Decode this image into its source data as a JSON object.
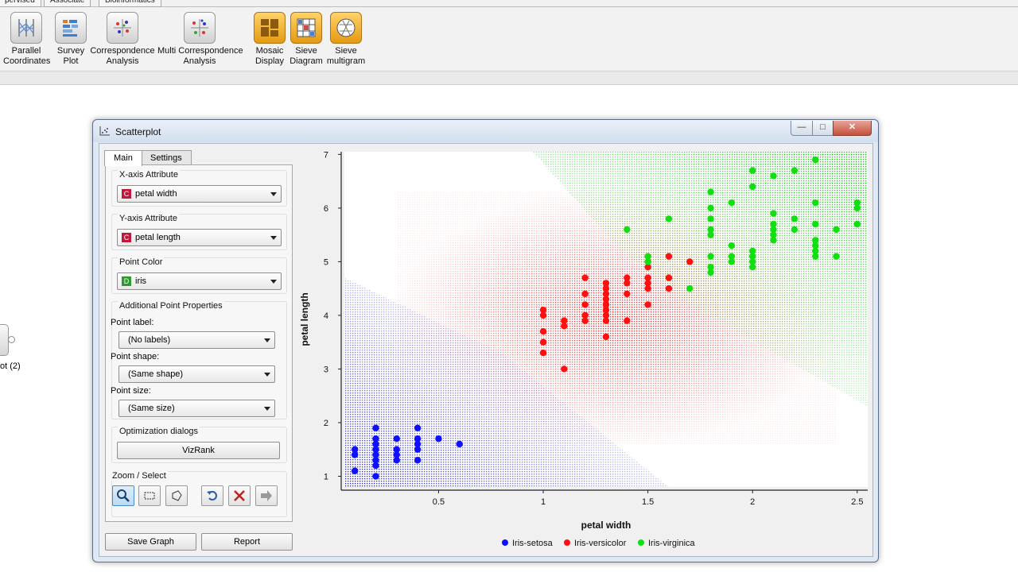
{
  "canvas_tabs": [
    "pervised",
    "Associate",
    "Bioinformatics"
  ],
  "toolbar": {
    "widgets": [
      {
        "label": "Parallel\nCoordinates",
        "icon": "parallel-coordinates-icon"
      },
      {
        "label": "Survey\nPlot",
        "icon": "survey-plot-icon"
      },
      {
        "label": "Correspondence\nAnalysis",
        "icon": "correspondence-analysis-icon"
      },
      {
        "label": "Multi Correspondence\nAnalysis",
        "icon": "multi-correspondence-analysis-icon"
      },
      {
        "label": "Mosaic\nDisplay",
        "icon": "mosaic-display-icon"
      },
      {
        "label": "Sieve\nDiagram",
        "icon": "sieve-diagram-icon"
      },
      {
        "label": "Sieve\nmultigram",
        "icon": "sieve-multigram-icon"
      }
    ]
  },
  "canvas_node": {
    "label": "ot (2)"
  },
  "window": {
    "title": "Scatterplot",
    "minimize": "—",
    "maximize": "□",
    "close": "✕"
  },
  "panel": {
    "tabs": [
      "Main",
      "Settings"
    ],
    "active_tab": "Main",
    "x_axis": {
      "title": "X-axis Attribute",
      "type": "C",
      "value": "petal width"
    },
    "y_axis": {
      "title": "Y-axis Attribute",
      "type": "C",
      "value": "petal length"
    },
    "point_color": {
      "title": "Point Color",
      "type": "D",
      "value": "iris"
    },
    "additional": {
      "title": "Additional Point Properties",
      "label_caption": "Point label:",
      "label_value": "(No labels)",
      "shape_caption": "Point shape:",
      "shape_value": "(Same shape)",
      "size_caption": "Point size:",
      "size_value": "(Same size)"
    },
    "optimization": {
      "title": "Optimization dialogs",
      "button": "VizRank"
    },
    "zoom": {
      "title": "Zoom / Select",
      "tools": [
        "zoom-icon",
        "rectangle-select-icon",
        "lasso-select-icon",
        "undo-icon",
        "remove-selection-icon",
        "send-selection-icon"
      ]
    },
    "save_graph": "Save Graph",
    "report": "Report"
  },
  "colors": {
    "setosa": "#1010ff",
    "versicolor": "#ff1010",
    "virginica": "#10e010",
    "window_frame": "#dfe8f3"
  },
  "chart_data": {
    "type": "scatter",
    "xlabel": "petal width",
    "ylabel": "petal length",
    "xlim": [
      0.05,
      2.55
    ],
    "ylim": [
      0.8,
      7.05
    ],
    "xticks": [
      "0.5",
      "1",
      "1.5",
      "2",
      "2.5"
    ],
    "yticks": [
      "1",
      "2",
      "3",
      "4",
      "5",
      "6",
      "7"
    ],
    "background": "classification probability map",
    "legend_position": "bottom",
    "series": [
      {
        "name": "Iris-setosa",
        "color": "#1010ff",
        "points": [
          [
            0.1,
            1.1
          ],
          [
            0.1,
            1.4
          ],
          [
            0.1,
            1.5
          ],
          [
            0.2,
            1.0
          ],
          [
            0.2,
            1.2
          ],
          [
            0.2,
            1.3
          ],
          [
            0.2,
            1.4
          ],
          [
            0.2,
            1.5
          ],
          [
            0.2,
            1.6
          ],
          [
            0.2,
            1.7
          ],
          [
            0.2,
            1.9
          ],
          [
            0.3,
            1.3
          ],
          [
            0.3,
            1.4
          ],
          [
            0.3,
            1.5
          ],
          [
            0.3,
            1.7
          ],
          [
            0.4,
            1.3
          ],
          [
            0.4,
            1.5
          ],
          [
            0.4,
            1.6
          ],
          [
            0.4,
            1.7
          ],
          [
            0.4,
            1.9
          ],
          [
            0.5,
            1.7
          ],
          [
            0.6,
            1.6
          ]
        ]
      },
      {
        "name": "Iris-versicolor",
        "color": "#ff1010",
        "points": [
          [
            1.0,
            3.3
          ],
          [
            1.0,
            3.5
          ],
          [
            1.0,
            3.7
          ],
          [
            1.0,
            4.0
          ],
          [
            1.0,
            4.1
          ],
          [
            1.1,
            3.0
          ],
          [
            1.1,
            3.8
          ],
          [
            1.1,
            3.9
          ],
          [
            1.2,
            3.9
          ],
          [
            1.2,
            4.0
          ],
          [
            1.2,
            4.2
          ],
          [
            1.2,
            4.4
          ],
          [
            1.2,
            4.7
          ],
          [
            1.3,
            3.6
          ],
          [
            1.3,
            3.9
          ],
          [
            1.3,
            4.0
          ],
          [
            1.3,
            4.1
          ],
          [
            1.3,
            4.2
          ],
          [
            1.3,
            4.3
          ],
          [
            1.3,
            4.4
          ],
          [
            1.3,
            4.5
          ],
          [
            1.3,
            4.6
          ],
          [
            1.4,
            3.9
          ],
          [
            1.4,
            4.4
          ],
          [
            1.4,
            4.6
          ],
          [
            1.4,
            4.7
          ],
          [
            1.5,
            4.2
          ],
          [
            1.5,
            4.5
          ],
          [
            1.5,
            4.6
          ],
          [
            1.5,
            4.7
          ],
          [
            1.5,
            4.9
          ],
          [
            1.6,
            4.5
          ],
          [
            1.6,
            4.7
          ],
          [
            1.6,
            5.1
          ],
          [
            1.7,
            5.0
          ]
        ]
      },
      {
        "name": "Iris-virginica",
        "color": "#10e010",
        "points": [
          [
            1.4,
            5.6
          ],
          [
            1.5,
            5.0
          ],
          [
            1.5,
            5.1
          ],
          [
            1.6,
            5.8
          ],
          [
            1.7,
            4.5
          ],
          [
            1.8,
            4.8
          ],
          [
            1.8,
            4.9
          ],
          [
            1.8,
            5.1
          ],
          [
            1.8,
            5.5
          ],
          [
            1.8,
            5.6
          ],
          [
            1.8,
            5.8
          ],
          [
            1.8,
            6.0
          ],
          [
            1.8,
            6.3
          ],
          [
            1.9,
            5.0
          ],
          [
            1.9,
            5.1
          ],
          [
            1.9,
            5.3
          ],
          [
            1.9,
            6.1
          ],
          [
            2.0,
            4.9
          ],
          [
            2.0,
            5.0
          ],
          [
            2.0,
            5.1
          ],
          [
            2.0,
            5.2
          ],
          [
            2.0,
            6.4
          ],
          [
            2.0,
            6.7
          ],
          [
            2.1,
            5.4
          ],
          [
            2.1,
            5.5
          ],
          [
            2.1,
            5.6
          ],
          [
            2.1,
            5.7
          ],
          [
            2.1,
            5.9
          ],
          [
            2.1,
            6.6
          ],
          [
            2.2,
            5.6
          ],
          [
            2.2,
            5.8
          ],
          [
            2.2,
            6.7
          ],
          [
            2.3,
            5.1
          ],
          [
            2.3,
            5.2
          ],
          [
            2.3,
            5.3
          ],
          [
            2.3,
            5.4
          ],
          [
            2.3,
            5.7
          ],
          [
            2.3,
            6.1
          ],
          [
            2.3,
            6.9
          ],
          [
            2.4,
            5.1
          ],
          [
            2.4,
            5.6
          ],
          [
            2.5,
            5.7
          ],
          [
            2.5,
            6.0
          ],
          [
            2.5,
            6.1
          ]
        ]
      }
    ]
  }
}
